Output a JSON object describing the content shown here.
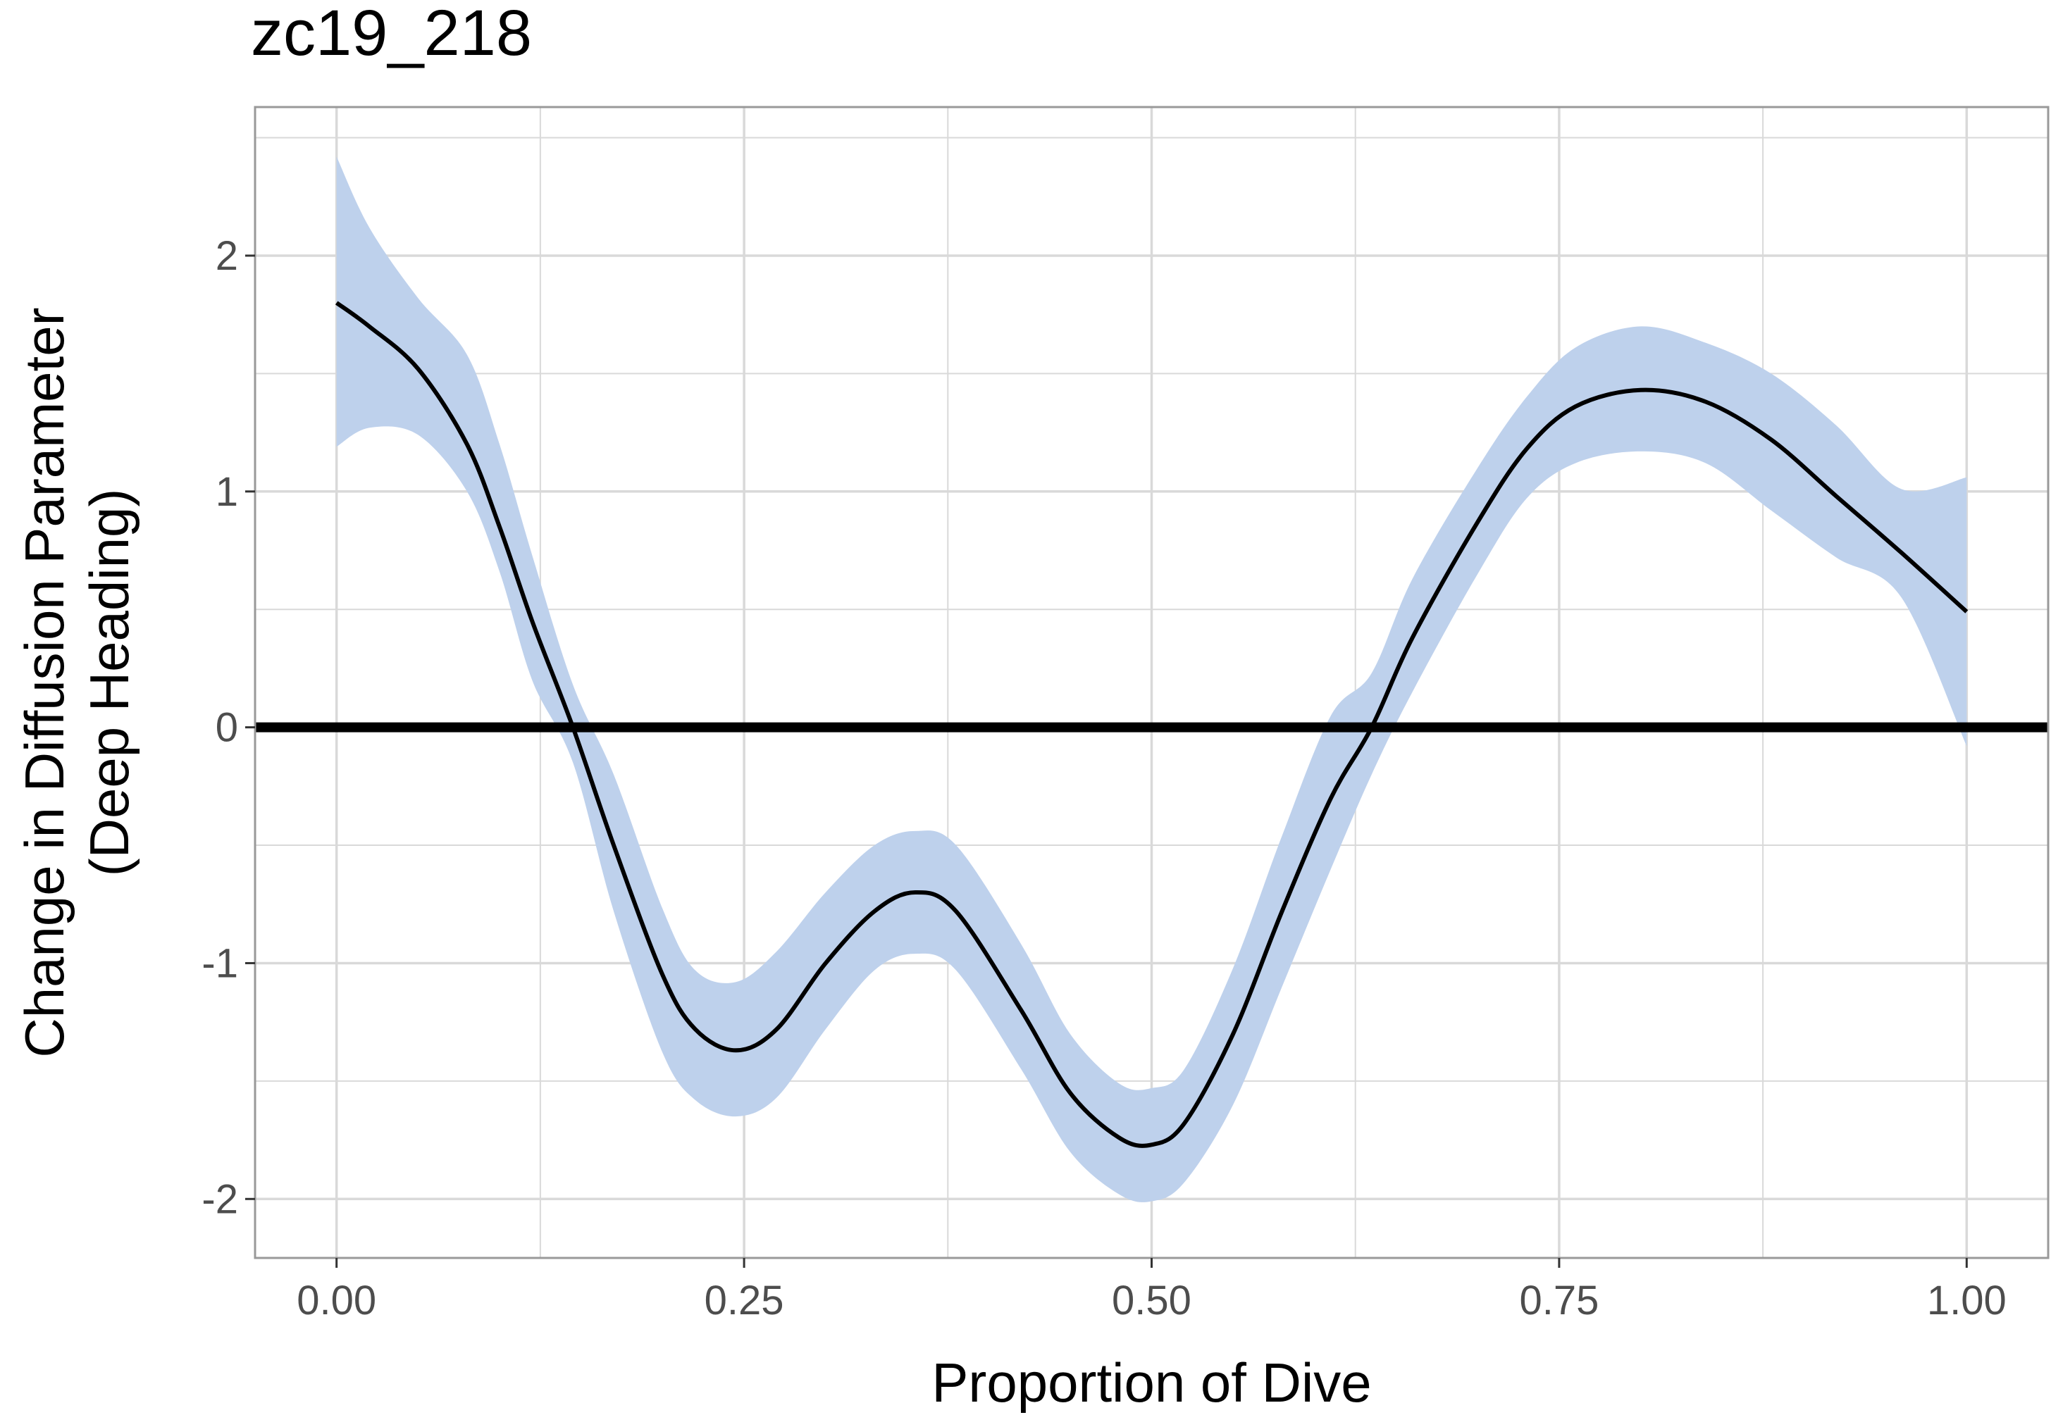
{
  "chart_data": {
    "type": "line",
    "title": "zc19_218",
    "xlabel": "Proportion of Dive",
    "ylabel_lines": [
      "Change in Diffusion Parameter",
      "(Deep Heading)"
    ],
    "xlim": [
      -0.05,
      1.05
    ],
    "ylim": [
      -2.25,
      2.63
    ],
    "x_ticks": [
      0,
      0.25,
      0.5,
      0.75,
      1
    ],
    "x_tick_labels": [
      "0.00",
      "0.25",
      "0.50",
      "0.75",
      "1.00"
    ],
    "y_ticks": [
      -2,
      -1,
      0,
      1,
      2
    ],
    "y_tick_labels": [
      "-2",
      "-1",
      "0",
      "1",
      "2"
    ],
    "x_minor_ticks": [
      0.125,
      0.375,
      0.625,
      0.875
    ],
    "y_minor_ticks": [
      -1.5,
      -0.5,
      0.5,
      1.5,
      2.5
    ],
    "grid": true,
    "reference_line_y": 0,
    "series": [
      {
        "x": [
          0,
          0.02,
          0.05,
          0.08,
          0.1,
          0.12,
          0.145,
          0.17,
          0.2,
          0.22,
          0.245,
          0.27,
          0.3,
          0.33,
          0.355,
          0.38,
          0.42,
          0.45,
          0.48,
          0.5,
          0.52,
          0.55,
          0.58,
          0.61,
          0.635,
          0.66,
          0.7,
          0.73,
          0.76,
          0.8,
          0.84,
          0.88,
          0.92,
          0.96,
          1.0
        ],
        "values": [
          1.8,
          1.7,
          1.52,
          1.2,
          0.85,
          0.45,
          0.0,
          -0.5,
          -1.05,
          -1.28,
          -1.37,
          -1.28,
          -1.0,
          -0.78,
          -0.7,
          -0.78,
          -1.2,
          -1.55,
          -1.74,
          -1.77,
          -1.68,
          -1.3,
          -0.78,
          -0.3,
          0.0,
          0.38,
          0.87,
          1.18,
          1.36,
          1.43,
          1.38,
          1.22,
          0.98,
          0.74,
          0.49
        ],
        "ci_lower": [
          1.19,
          1.27,
          1.24,
          1.0,
          0.66,
          0.2,
          -0.15,
          -0.78,
          -1.38,
          -1.58,
          -1.65,
          -1.57,
          -1.28,
          -1.03,
          -0.96,
          -1.03,
          -1.45,
          -1.8,
          -1.98,
          -2.01,
          -1.93,
          -1.6,
          -1.1,
          -0.6,
          -0.2,
          0.15,
          0.65,
          0.97,
          1.12,
          1.17,
          1.12,
          0.92,
          0.72,
          0.55,
          -0.08
        ],
        "ci_upper": [
          2.42,
          2.12,
          1.82,
          1.58,
          1.2,
          0.73,
          0.18,
          -0.2,
          -0.77,
          -1.03,
          -1.08,
          -0.95,
          -0.7,
          -0.5,
          -0.44,
          -0.5,
          -0.92,
          -1.3,
          -1.51,
          -1.53,
          -1.45,
          -1.02,
          -0.46,
          0.05,
          0.23,
          0.63,
          1.1,
          1.4,
          1.61,
          1.7,
          1.63,
          1.5,
          1.28,
          1.01,
          1.06
        ]
      }
    ],
    "colors": {
      "line": "#000000",
      "ribbon": "#bed1ec",
      "grid": "#d9d9d9",
      "panel_border": "#999999",
      "reference_line": "#000000"
    }
  }
}
